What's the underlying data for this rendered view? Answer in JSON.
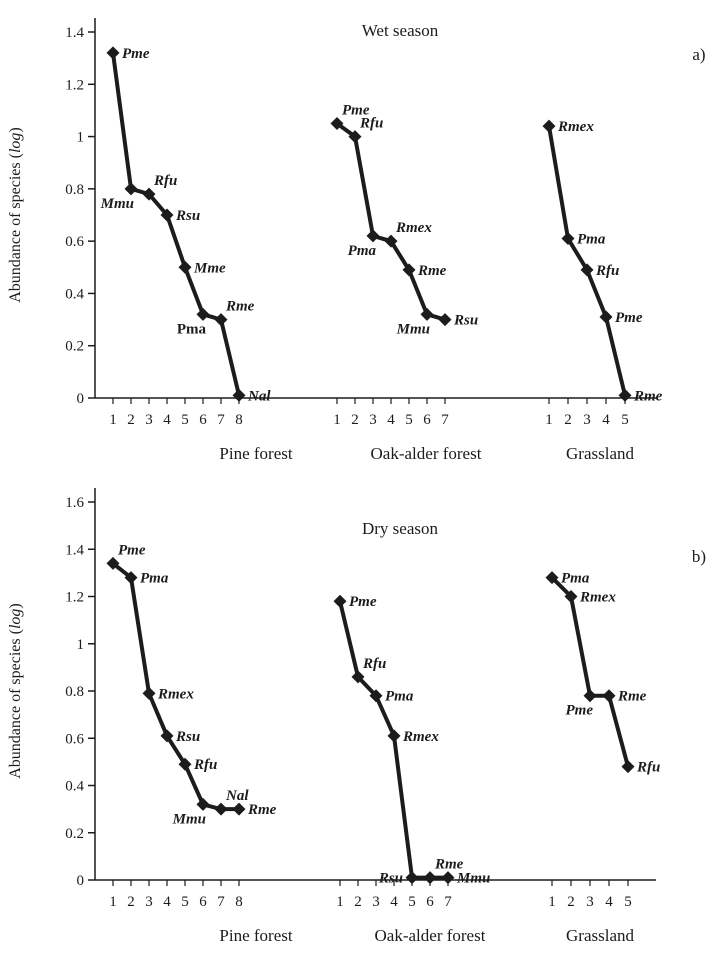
{
  "figure": {
    "ink": "#1c1c1c",
    "background": "#ffffff"
  },
  "chart_data": {
    "type": "line",
    "description": "Rank-abundance (Whittaker) plots of small mammal species in three habitats for wet and dry seasons",
    "panels": [
      {
        "corner_label": "a)",
        "title": "Wet season",
        "ylabel": "Abundance of species (log)",
        "ylabel_parts": {
          "prefix": "Abundance of species (",
          "italic": "log",
          "suffix": ")"
        },
        "ylim": [
          0,
          1.4
        ],
        "yticks": [
          {
            "value": 0,
            "label": "0"
          },
          {
            "value": 0.2,
            "label": "0.2"
          },
          {
            "value": 0.4,
            "label": "0.4"
          },
          {
            "value": 0.6,
            "label": "0.6"
          },
          {
            "value": 0.8,
            "label": "0.8"
          },
          {
            "value": 1,
            "label": "1"
          },
          {
            "value": 1.2,
            "label": "1.2"
          },
          {
            "value": 1.4,
            "label": "1.4"
          }
        ],
        "groups": [
          {
            "name": "Pine forest",
            "xticks": [
              "1",
              "2",
              "3",
              "4",
              "5",
              "6",
              "7",
              "8"
            ],
            "points": [
              {
                "rank": 1,
                "value": 1.32,
                "label": "Pme",
                "italic": true,
                "label_pos": "r"
              },
              {
                "rank": 2,
                "value": 0.8,
                "label": "Mmu",
                "italic": true,
                "label_pos": "bl"
              },
              {
                "rank": 3,
                "value": 0.78,
                "label": "Rfu",
                "italic": true,
                "label_pos": "tr"
              },
              {
                "rank": 4,
                "value": 0.7,
                "label": "Rsu",
                "italic": true,
                "label_pos": "r"
              },
              {
                "rank": 5,
                "value": 0.5,
                "label": "Mme",
                "italic": true,
                "label_pos": "r"
              },
              {
                "rank": 6,
                "value": 0.32,
                "label": "Pma",
                "italic": false,
                "label_pos": "bl"
              },
              {
                "rank": 7,
                "value": 0.3,
                "label": "Rme",
                "italic": true,
                "label_pos": "tr"
              },
              {
                "rank": 8,
                "value": 0.01,
                "label": "Nal",
                "italic": true,
                "label_pos": "r"
              }
            ]
          },
          {
            "name": "Oak-alder forest",
            "xticks": [
              "1",
              "2",
              "3",
              "4",
              "5",
              "6",
              "7"
            ],
            "points": [
              {
                "rank": 1,
                "value": 1.05,
                "label": "Pme",
                "italic": true,
                "label_pos": "tr"
              },
              {
                "rank": 2,
                "value": 1.0,
                "label": "Rfu",
                "italic": true,
                "label_pos": "tr"
              },
              {
                "rank": 3,
                "value": 0.62,
                "label": "Pma",
                "italic": true,
                "label_pos": "bl"
              },
              {
                "rank": 4,
                "value": 0.6,
                "label": "Rmex",
                "italic": true,
                "label_pos": "tr"
              },
              {
                "rank": 5,
                "value": 0.49,
                "label": "Rme",
                "italic": true,
                "label_pos": "r"
              },
              {
                "rank": 6,
                "value": 0.32,
                "label": "Mmu",
                "italic": true,
                "label_pos": "bl"
              },
              {
                "rank": 7,
                "value": 0.3,
                "label": "Rsu",
                "italic": true,
                "label_pos": "r"
              }
            ]
          },
          {
            "name": "Grassland",
            "xticks": [
              "1",
              "2",
              "3",
              "4",
              "5"
            ],
            "points": [
              {
                "rank": 1,
                "value": 1.04,
                "label": "Rmex",
                "italic": true,
                "label_pos": "r"
              },
              {
                "rank": 2,
                "value": 0.61,
                "label": "Pma",
                "italic": true,
                "label_pos": "r"
              },
              {
                "rank": 3,
                "value": 0.49,
                "label": "Rfu",
                "italic": true,
                "label_pos": "r"
              },
              {
                "rank": 4,
                "value": 0.31,
                "label": "Pme",
                "italic": true,
                "label_pos": "r"
              },
              {
                "rank": 5,
                "value": 0.01,
                "label": "Rme",
                "italic": true,
                "label_pos": "r"
              }
            ]
          }
        ]
      },
      {
        "corner_label": "b)",
        "title": "Dry season",
        "ylabel": "Abundance of species (log)",
        "ylabel_parts": {
          "prefix": "Abundance of species (",
          "italic": "log",
          "suffix": ")"
        },
        "ylim": [
          0,
          1.6
        ],
        "yticks": [
          {
            "value": 0,
            "label": "0"
          },
          {
            "value": 0.2,
            "label": "0.2"
          },
          {
            "value": 0.4,
            "label": "0.4"
          },
          {
            "value": 0.6,
            "label": "0.6"
          },
          {
            "value": 0.8,
            "label": "0.8"
          },
          {
            "value": 1,
            "label": "1"
          },
          {
            "value": 1.2,
            "label": "1.2"
          },
          {
            "value": 1.4,
            "label": "1.4"
          },
          {
            "value": 1.6,
            "label": "1.6"
          }
        ],
        "groups": [
          {
            "name": "Pine forest",
            "xticks": [
              "1",
              "2",
              "3",
              "4",
              "5",
              "6",
              "7",
              "8"
            ],
            "points": [
              {
                "rank": 1,
                "value": 1.34,
                "label": "Pme",
                "italic": true,
                "label_pos": "tr"
              },
              {
                "rank": 2,
                "value": 1.28,
                "label": "Pma",
                "italic": true,
                "label_pos": "r"
              },
              {
                "rank": 3,
                "value": 0.79,
                "label": "Rmex",
                "italic": true,
                "label_pos": "r"
              },
              {
                "rank": 4,
                "value": 0.61,
                "label": "Rsu",
                "italic": true,
                "label_pos": "r"
              },
              {
                "rank": 5,
                "value": 0.49,
                "label": "Rfu",
                "italic": true,
                "label_pos": "r"
              },
              {
                "rank": 6,
                "value": 0.32,
                "label": "Mmu",
                "italic": true,
                "label_pos": "bl"
              },
              {
                "rank": 7,
                "value": 0.3,
                "label": "Nal",
                "italic": true,
                "label_pos": "tr"
              },
              {
                "rank": 8,
                "value": 0.3,
                "label": "Rme",
                "italic": true,
                "label_pos": "r"
              }
            ]
          },
          {
            "name": "Oak-alder forest",
            "xticks": [
              "1",
              "2",
              "3",
              "4",
              "5",
              "6",
              "7"
            ],
            "points": [
              {
                "rank": 1,
                "value": 1.18,
                "label": "Pme",
                "italic": true,
                "label_pos": "r"
              },
              {
                "rank": 2,
                "value": 0.86,
                "label": "Rfu",
                "italic": true,
                "label_pos": "tr"
              },
              {
                "rank": 3,
                "value": 0.78,
                "label": "Pma",
                "italic": true,
                "label_pos": "r"
              },
              {
                "rank": 4,
                "value": 0.61,
                "label": "Rmex",
                "italic": true,
                "label_pos": "r"
              },
              {
                "rank": 5,
                "value": 0.01,
                "label": "Rsu",
                "italic": true,
                "label_pos": "l"
              },
              {
                "rank": 6,
                "value": 0.01,
                "label": "Rme",
                "italic": true,
                "label_pos": "tr"
              },
              {
                "rank": 7,
                "value": 0.01,
                "label": "Mmu",
                "italic": true,
                "label_pos": "r"
              }
            ]
          },
          {
            "name": "Grassland",
            "xticks": [
              "1",
              "2",
              "3",
              "4",
              "5"
            ],
            "points": [
              {
                "rank": 1,
                "value": 1.28,
                "label": "Pma",
                "italic": true,
                "label_pos": "r"
              },
              {
                "rank": 2,
                "value": 1.2,
                "label": "Rmex",
                "italic": true,
                "label_pos": "r"
              },
              {
                "rank": 3,
                "value": 0.78,
                "label": "Pme",
                "italic": true,
                "label_pos": "bl"
              },
              {
                "rank": 4,
                "value": 0.78,
                "label": "Rme",
                "italic": true,
                "label_pos": "r"
              },
              {
                "rank": 5,
                "value": 0.48,
                "label": "Rfu",
                "italic": true,
                "label_pos": "r"
              }
            ]
          }
        ]
      }
    ]
  }
}
